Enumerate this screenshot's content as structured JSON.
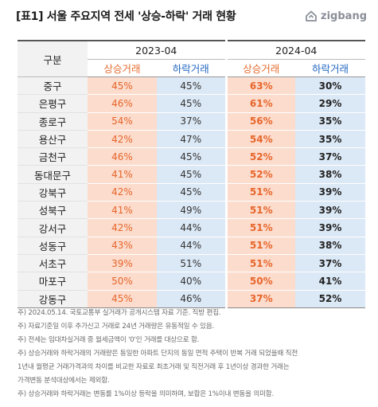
{
  "title": "[표1] 서울 주요지역 전세 '상승-하락' 거래 현황",
  "logo": {
    "text": "zigbang",
    "icon": "zigbang-house-icon"
  },
  "table": {
    "region_header": "구분",
    "years": [
      "2023-04",
      "2024-04"
    ],
    "sub_headers": [
      "상승거래",
      "하락거래",
      "상승거래",
      "하락거래"
    ],
    "rows": [
      {
        "region": "중구",
        "y2023_up": "45%",
        "y2023_down": "45%",
        "y2024_up": "63%",
        "y2024_down": "30%"
      },
      {
        "region": "은평구",
        "y2023_up": "46%",
        "y2023_down": "45%",
        "y2024_up": "61%",
        "y2024_down": "29%"
      },
      {
        "region": "종로구",
        "y2023_up": "54%",
        "y2023_down": "37%",
        "y2024_up": "56%",
        "y2024_down": "35%"
      },
      {
        "region": "용산구",
        "y2023_up": "42%",
        "y2023_down": "47%",
        "y2024_up": "54%",
        "y2024_down": "35%"
      },
      {
        "region": "금천구",
        "y2023_up": "46%",
        "y2023_down": "45%",
        "y2024_up": "52%",
        "y2024_down": "37%"
      },
      {
        "region": "동대문구",
        "y2023_up": "41%",
        "y2023_down": "45%",
        "y2024_up": "52%",
        "y2024_down": "38%"
      },
      {
        "region": "강북구",
        "y2023_up": "42%",
        "y2023_down": "45%",
        "y2024_up": "51%",
        "y2024_down": "39%"
      },
      {
        "region": "성북구",
        "y2023_up": "41%",
        "y2023_down": "49%",
        "y2024_up": "51%",
        "y2024_down": "39%"
      },
      {
        "region": "강서구",
        "y2023_up": "42%",
        "y2023_down": "44%",
        "y2024_up": "51%",
        "y2024_down": "39%"
      },
      {
        "region": "성동구",
        "y2023_up": "43%",
        "y2023_down": "44%",
        "y2024_up": "51%",
        "y2024_down": "38%"
      },
      {
        "region": "서초구",
        "y2023_up": "39%",
        "y2023_down": "51%",
        "y2024_up": "51%",
        "y2024_down": "37%"
      },
      {
        "region": "마포구",
        "y2023_up": "50%",
        "y2023_down": "40%",
        "y2024_up": "50%",
        "y2024_down": "41%"
      },
      {
        "region": "강동구",
        "y2023_up": "45%",
        "y2023_down": "46%",
        "y2024_up": "37%",
        "y2024_down": "52%"
      }
    ]
  },
  "notes": [
    "주) 2024.05.14. 국토교통부 실거래가 공개시스템 자료 기준. 직방 편집.",
    "주) 자료기준일 이후 추가신고 거래로 24년 거래량은 유동적일 수 있음.",
    "주) 전세는 임대차실거래 중 월세금액이 '0'인 거래를 대상으로 함.",
    "주) 상승거래와 하락거래의 거래량은 동일한 아파트 단지의 동일 면적 주택이 반복 거래 되었을때 직전",
    "1년내 월평균 거래가격과의 차이를 비교한 자료로 최초거래 및 직전거래 후 1년이상 경과한 거래는",
    "가격변동 분석대상에서는 제외함.",
    "주) 상승거래와 하락거래는 변동률 1%이상 등락을 의미하며, 보합은 1%이내 변동을 의미함."
  ],
  "colors": {
    "up_bg": "#fbdccd",
    "up_text": "#e8652a",
    "down_bg": "#dbe8f5",
    "down_text": "#2468c2",
    "region_bg": "#f2f2f2"
  }
}
